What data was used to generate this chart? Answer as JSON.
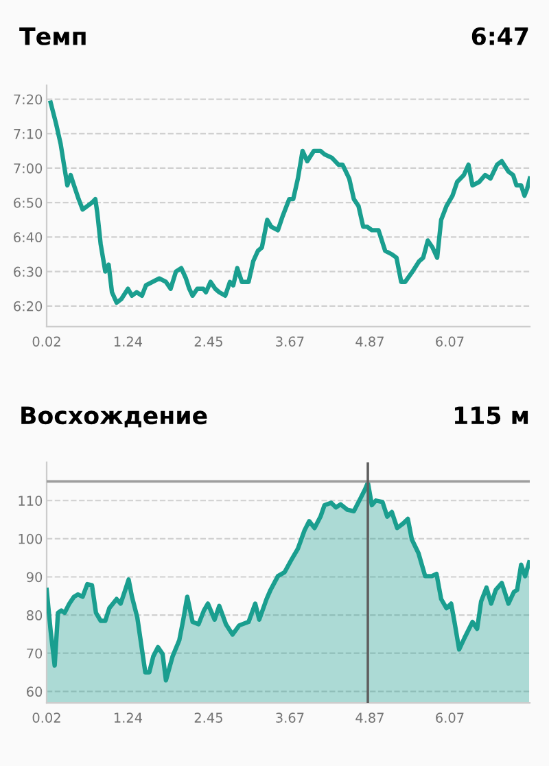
{
  "chart_data": [
    {
      "type": "line",
      "title": "Темп",
      "subtitle": "6:47",
      "xlim": [
        0.02,
        7.27
      ],
      "xticks": [
        0.02,
        1.24,
        2.45,
        3.67,
        4.87,
        6.07
      ],
      "ylim": [
        374,
        444
      ],
      "yticks": [
        {
          "value": 380,
          "label": "6:20"
        },
        {
          "value": 390,
          "label": "6:30"
        },
        {
          "value": 400,
          "label": "6:40"
        },
        {
          "value": 410,
          "label": "6:50"
        },
        {
          "value": 420,
          "label": "7:00"
        },
        {
          "value": 430,
          "label": "7:10"
        },
        {
          "value": 440,
          "label": "7:20"
        }
      ],
      "grid": "y",
      "legend": false,
      "marker": "none",
      "line_style": "solid",
      "series": [
        {
          "color": "#1a9e8f",
          "x": [
            0.08,
            0.16,
            0.23,
            0.28,
            0.33,
            0.38,
            0.43,
            0.5,
            0.56,
            0.63,
            0.7,
            0.75,
            0.78,
            0.83,
            0.9,
            0.95,
            1.0,
            1.07,
            1.14,
            1.24,
            1.3,
            1.37,
            1.45,
            1.51,
            1.61,
            1.71,
            1.81,
            1.88,
            1.96,
            2.04,
            2.11,
            2.16,
            2.21,
            2.28,
            2.37,
            2.41,
            2.48,
            2.55,
            2.61,
            2.7,
            2.77,
            2.82,
            2.88,
            2.95,
            3.05,
            3.12,
            3.19,
            3.25,
            3.33,
            3.39,
            3.49,
            3.56,
            3.66,
            3.72,
            3.79,
            3.86,
            3.93,
            4.03,
            4.13,
            4.19,
            4.3,
            4.4,
            4.46,
            4.56,
            4.63,
            4.7,
            4.77,
            4.83,
            4.9,
            5.0,
            5.1,
            5.2,
            5.27,
            5.34,
            5.4,
            5.51,
            5.61,
            5.67,
            5.74,
            5.81,
            5.88,
            5.94,
            6.02,
            6.11,
            6.18,
            6.28,
            6.35,
            6.41,
            6.51,
            6.6,
            6.68,
            6.78,
            6.85,
            6.95,
            7.02,
            7.07,
            7.14,
            7.19,
            7.23,
            7.27
          ],
          "values": [
            439,
            433,
            427,
            421,
            415,
            418,
            415,
            411,
            408,
            409,
            410,
            411,
            407,
            398,
            390,
            392,
            384,
            381,
            382,
            385,
            383,
            384,
            383,
            386,
            387,
            388,
            387,
            385,
            390,
            391,
            388,
            385,
            383,
            385,
            385,
            384,
            387,
            385,
            384,
            383,
            387,
            386,
            391,
            387,
            387,
            393,
            396,
            397,
            405,
            403,
            402,
            406,
            411,
            411,
            417,
            425,
            422,
            425,
            425,
            424,
            423,
            421,
            421,
            417,
            411,
            409,
            403,
            403,
            402,
            402,
            396,
            395,
            394,
            387,
            387,
            390,
            393,
            394,
            399,
            397,
            394,
            405,
            409,
            412,
            416,
            418,
            421,
            415,
            416,
            418,
            417,
            421,
            422,
            419,
            418,
            415,
            415,
            412,
            414,
            417
          ]
        }
      ]
    },
    {
      "type": "area",
      "title": "Восхождение",
      "subtitle": "115 м",
      "xlim": [
        0.02,
        7.27
      ],
      "xticks": [
        0.02,
        1.24,
        2.45,
        3.67,
        4.87,
        6.07
      ],
      "ylim": [
        57,
        120
      ],
      "yticks": [
        60,
        70,
        80,
        90,
        100,
        110
      ],
      "grid": "y",
      "legend": false,
      "marker": "none",
      "line_style": "solid",
      "ref_lines": [
        {
          "axis": "y",
          "value": 115,
          "color": "#9e9e9e"
        },
        {
          "axis": "x",
          "value": 4.84,
          "color": "#5f5f5f"
        }
      ],
      "series": [
        {
          "color": "#1a9e8f",
          "x": [
            0.02,
            0.08,
            0.14,
            0.19,
            0.24,
            0.29,
            0.36,
            0.43,
            0.49,
            0.56,
            0.63,
            0.7,
            0.76,
            0.83,
            0.9,
            0.96,
            1.07,
            1.13,
            1.2,
            1.25,
            1.3,
            1.38,
            1.44,
            1.5,
            1.56,
            1.62,
            1.69,
            1.76,
            1.81,
            1.91,
            2.01,
            2.07,
            2.13,
            2.21,
            2.3,
            2.38,
            2.44,
            2.54,
            2.61,
            2.71,
            2.81,
            2.91,
            3.05,
            3.15,
            3.21,
            3.32,
            3.38,
            3.49,
            3.59,
            3.69,
            3.79,
            3.89,
            3.96,
            4.04,
            4.13,
            4.19,
            4.29,
            4.36,
            4.43,
            4.53,
            4.63,
            4.73,
            4.8,
            4.84,
            4.9,
            4.96,
            5.06,
            5.13,
            5.2,
            5.28,
            5.37,
            5.44,
            5.5,
            5.6,
            5.7,
            5.8,
            5.87,
            5.94,
            6.02,
            6.09,
            6.14,
            6.21,
            6.29,
            6.41,
            6.48,
            6.54,
            6.62,
            6.69,
            6.76,
            6.85,
            6.95,
            7.03,
            7.08,
            7.14,
            7.2,
            7.26
          ],
          "values": [
            86.6,
            75.8,
            66.8,
            80.6,
            81.2,
            80.6,
            83.0,
            84.8,
            85.4,
            84.8,
            88.1,
            87.8,
            80.6,
            78.5,
            78.5,
            81.8,
            84.2,
            83.0,
            86.6,
            89.3,
            84.8,
            79.4,
            72.2,
            65.0,
            65.0,
            69.2,
            71.6,
            69.8,
            62.9,
            69.2,
            73.4,
            78.8,
            84.8,
            78.2,
            77.6,
            81.2,
            83.0,
            78.8,
            82.4,
            77.6,
            74.9,
            77.3,
            78.2,
            83.0,
            78.8,
            84.2,
            86.6,
            90.2,
            91.2,
            94.4,
            97.4,
            102.2,
            104.6,
            102.8,
            105.8,
            108.8,
            109.4,
            108.2,
            109.0,
            107.6,
            107.2,
            110.6,
            113.0,
            114.7,
            108.8,
            110.0,
            109.6,
            105.8,
            107.0,
            102.8,
            104.0,
            105.2,
            99.8,
            96.2,
            90.2,
            90.2,
            90.8,
            84.2,
            81.8,
            83.0,
            78.2,
            71.0,
            74.0,
            78.2,
            76.4,
            83.6,
            87.2,
            83.0,
            86.6,
            88.4,
            83.0,
            86.0,
            86.6,
            93.2,
            90.2,
            93.8
          ]
        }
      ]
    }
  ]
}
